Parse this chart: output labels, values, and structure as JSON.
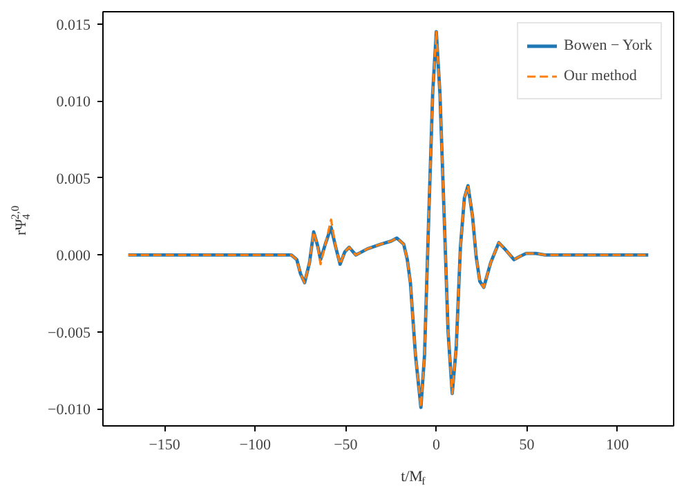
{
  "chart_data": {
    "type": "line",
    "xlabel": "t/M$_{f}$",
    "ylabel": "rΨ$_{4}$$^{2,0}$",
    "x": [
      -170,
      -120,
      -85,
      -80,
      -77,
      -75,
      -72.7,
      -70,
      -67.7,
      -65.5,
      -63.9,
      -61,
      -58.1,
      -55.5,
      -53.1,
      -50.5,
      -48.1,
      -44.4,
      -38,
      -30.6,
      -25,
      -21.8,
      -18,
      -16,
      -14.3,
      -11.5,
      -8.5,
      -6.5,
      -4.3,
      -2,
      0,
      2,
      4.5,
      6.5,
      8.8,
      11,
      13.3,
      15.5,
      17.5,
      20,
      22,
      24,
      26.2,
      30,
      34.5,
      38.5,
      42.9,
      46,
      49.6,
      55,
      60,
      70,
      117
    ],
    "series": [
      {
        "name": "Bowen − York",
        "color": "#1f77b4",
        "line_style": "solid",
        "values": [
          0,
          0,
          0,
          0.0,
          -0.0003,
          -0.0012,
          -0.0018,
          -0.0005,
          0.0015,
          0.0006,
          -0.0003,
          0.0008,
          0.0018,
          0.0005,
          -0.0006,
          0.0002,
          0.0005,
          0.0,
          0.0004,
          0.0007,
          0.0009,
          0.0011,
          0.0007,
          -0.0003,
          -0.0018,
          -0.0065,
          -0.0099,
          -0.0065,
          0.002,
          0.0105,
          0.0145,
          0.0105,
          0.002,
          -0.005,
          -0.009,
          -0.006,
          0.0005,
          0.0037,
          0.0045,
          0.0025,
          -0.0001,
          -0.0017,
          -0.0021,
          -0.0005,
          0.0008,
          0.0003,
          -0.0003,
          -0.0001,
          0.0001,
          0.0001,
          0.0,
          0.0,
          0.0
        ]
      },
      {
        "name": "Our method",
        "color": "#ff7f0e",
        "line_style": "dashed",
        "values": [
          0,
          0,
          0,
          0.0,
          -0.0003,
          -0.0012,
          -0.0018,
          -0.0005,
          0.0015,
          0.0006,
          -0.0006,
          0.0008,
          0.0023,
          0.0005,
          -0.0006,
          0.0002,
          0.0005,
          0.0,
          0.0004,
          0.0007,
          0.0009,
          0.0011,
          0.0007,
          -0.0003,
          -0.0018,
          -0.0065,
          -0.0099,
          -0.0065,
          0.002,
          0.0105,
          0.0145,
          0.0105,
          0.002,
          -0.005,
          -0.009,
          -0.006,
          0.0005,
          0.0037,
          0.0045,
          0.0025,
          -0.0001,
          -0.0017,
          -0.0021,
          -0.0005,
          0.0008,
          0.0003,
          -0.0003,
          -0.0001,
          0.0001,
          0.0001,
          0.0,
          0.0,
          0.0
        ]
      }
    ],
    "xlim": [
      -184,
      131
    ],
    "ylim": [
      -0.0111,
      0.0158
    ],
    "xticks": [
      {
        "value": -150,
        "label": "−150"
      },
      {
        "value": -100,
        "label": "−100"
      },
      {
        "value": -50,
        "label": "−50"
      },
      0,
      50,
      100
    ],
    "yticks": [
      {
        "value": -0.01,
        "label": "−0.010"
      },
      {
        "value": -0.005,
        "label": "−0.005"
      },
      {
        "value": 0,
        "label": "0.000"
      },
      {
        "value": 0.005,
        "label": "0.005"
      },
      {
        "value": 0.01,
        "label": "0.010"
      },
      {
        "value": 0.015,
        "label": "0.015"
      }
    ],
    "grid": false,
    "legend": "top right",
    "marker": "none"
  }
}
